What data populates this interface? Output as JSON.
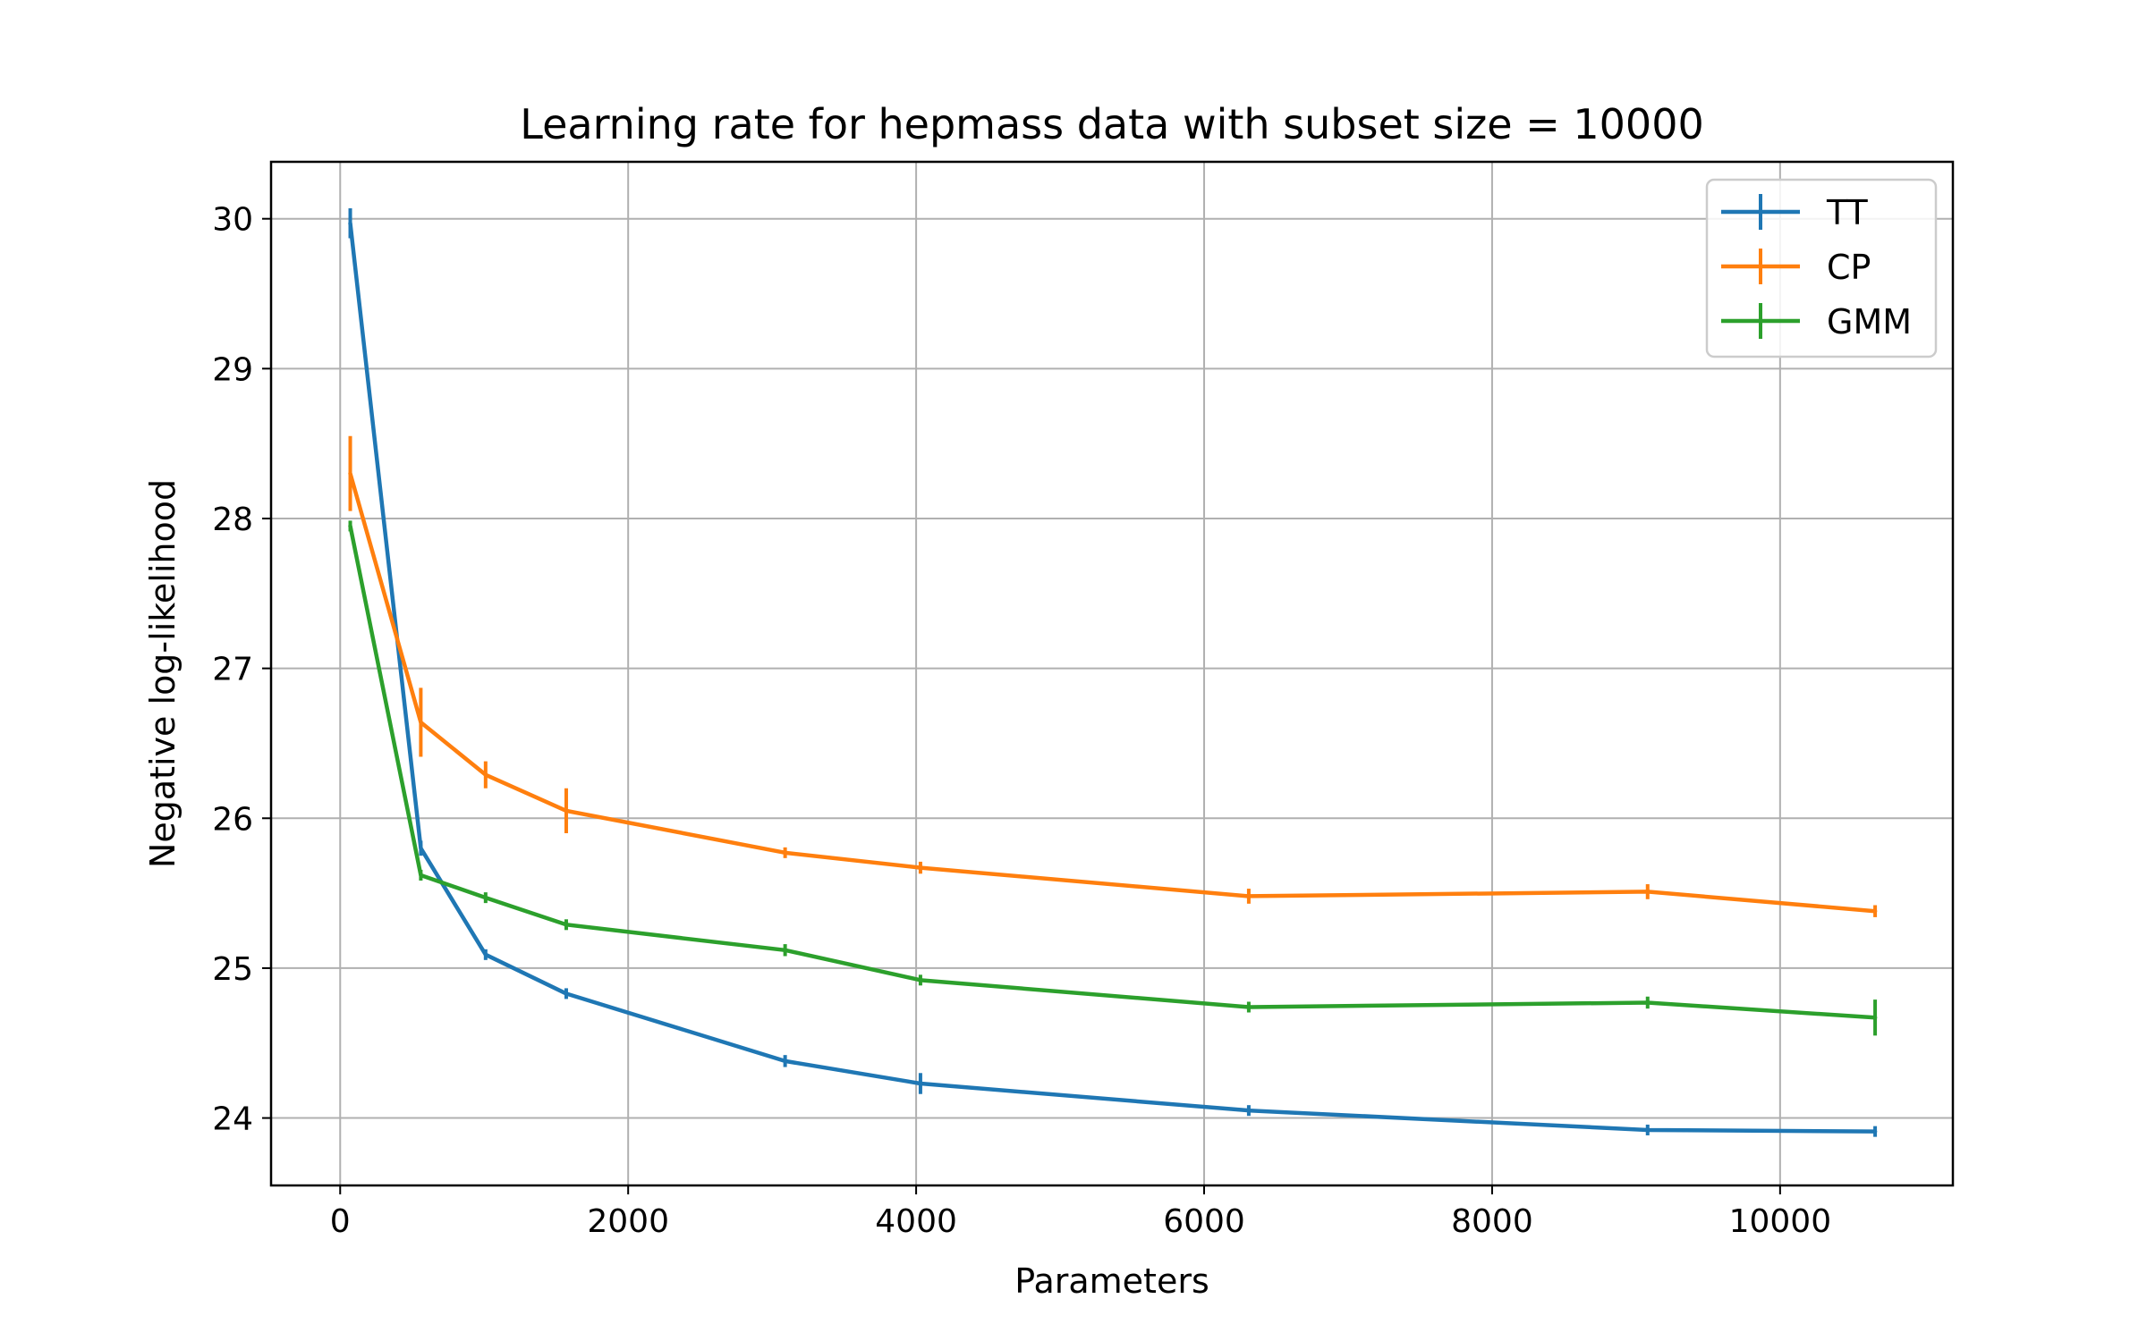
{
  "chart_data": {
    "type": "line",
    "title": "Learning rate for hepmass data with subset size = 10000",
    "xlabel": "Parameters",
    "ylabel": "Negative log-likelihood",
    "xlim": [
      -480,
      11200
    ],
    "ylim": [
      23.55,
      30.38
    ],
    "xticks": [
      0,
      2000,
      4000,
      6000,
      8000,
      10000
    ],
    "yticks": [
      24,
      25,
      26,
      27,
      28,
      29,
      30
    ],
    "grid": true,
    "legend_position": "top-right",
    "series": [
      {
        "name": "TT",
        "color": "#1f77b4",
        "x": [
          70,
          560,
          1010,
          1570,
          3090,
          4030,
          6310,
          9080,
          10660
        ],
        "y": [
          29.97,
          25.8,
          25.09,
          24.83,
          24.38,
          24.23,
          24.05,
          23.92,
          23.91
        ],
        "err": [
          0.1,
          0.05,
          0.03,
          0.03,
          0.04,
          0.07,
          0.03,
          0.03,
          0.02
        ]
      },
      {
        "name": "CP",
        "color": "#ff7f0e",
        "x": [
          70,
          560,
          1010,
          1570,
          3090,
          4030,
          6310,
          9080,
          10660
        ],
        "y": [
          28.3,
          26.64,
          26.29,
          26.05,
          25.77,
          25.67,
          25.48,
          25.51,
          25.38
        ],
        "err": [
          0.25,
          0.23,
          0.09,
          0.15,
          0.03,
          0.04,
          0.05,
          0.05,
          0.04
        ]
      },
      {
        "name": "GMM",
        "color": "#2ca02c",
        "x": [
          70,
          560,
          1010,
          1570,
          3090,
          4030,
          6310,
          9080,
          10660
        ],
        "y": [
          27.95,
          25.62,
          25.47,
          25.29,
          25.12,
          24.92,
          24.74,
          24.77,
          24.67
        ],
        "err": [
          0.0,
          0.0,
          0.02,
          0.0,
          0.04,
          0.0,
          0.0,
          0.04,
          0.12
        ]
      }
    ]
  }
}
